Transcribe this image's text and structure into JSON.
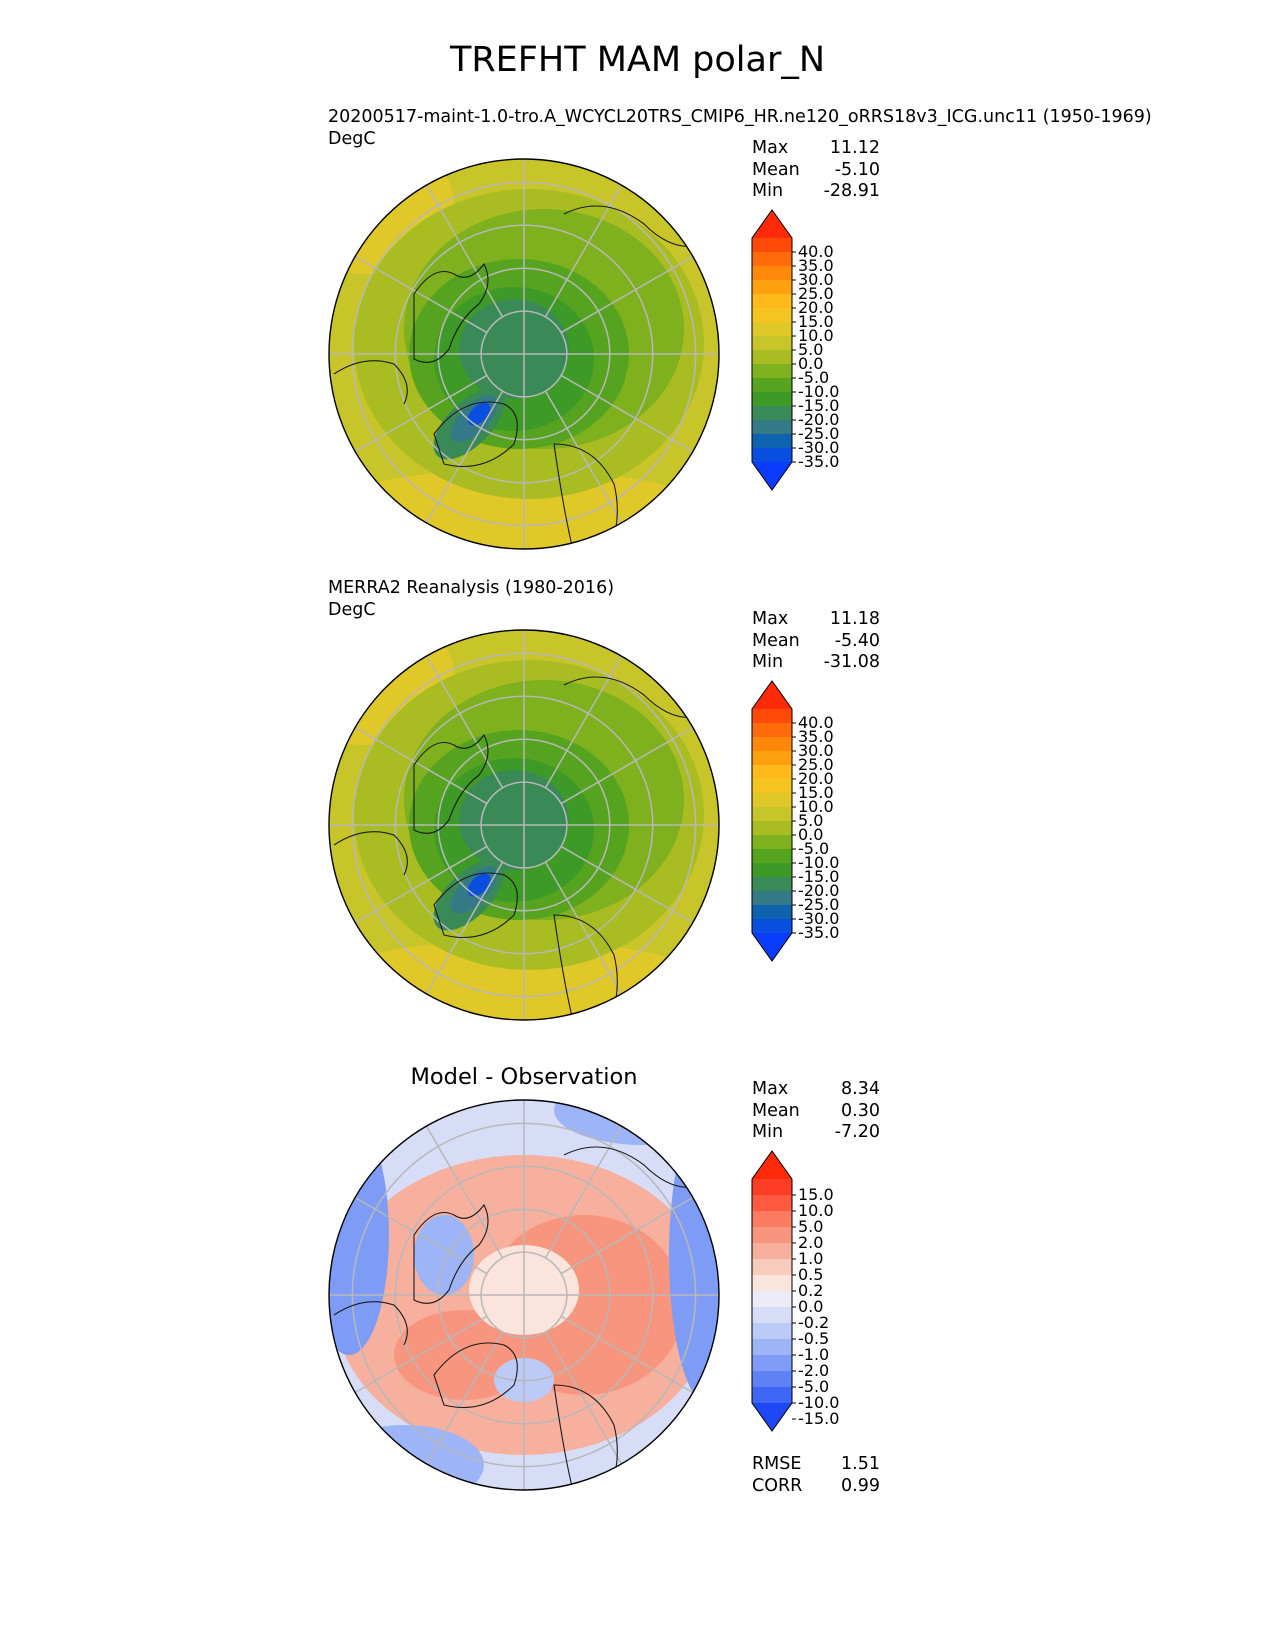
{
  "title": "TREFHT MAM polar_N",
  "panels": [
    {
      "subtitle": "20200517-maint-1.0-tro.A_WCYCL20TRS_CMIP6_HR.ne120_oRRS18v3_ICG.unc11 (1950-1969)",
      "units": "DegC",
      "stats": [
        {
          "label": "Max",
          "value": "11.12"
        },
        {
          "label": "Mean",
          "value": "-5.10"
        },
        {
          "label": "Min",
          "value": "-28.91"
        }
      ]
    },
    {
      "subtitle": "MERRA2 Reanalysis (1980-2016)",
      "units": "DegC",
      "stats": [
        {
          "label": "Max",
          "value": "11.18"
        },
        {
          "label": "Mean",
          "value": "-5.40"
        },
        {
          "label": "Min",
          "value": "-31.08"
        }
      ]
    },
    {
      "title": "Model - Observation",
      "stats": [
        {
          "label": "Max",
          "value": "8.34"
        },
        {
          "label": "Mean",
          "value": "0.30"
        },
        {
          "label": "Min",
          "value": "-7.20"
        }
      ],
      "extra_stats": [
        {
          "label": "RMSE",
          "value": "1.51"
        },
        {
          "label": "CORR",
          "value": "0.99"
        }
      ]
    }
  ],
  "chart_data": [
    {
      "type": "heatmap",
      "projection": "north polar stereographic",
      "variable": "TREFHT",
      "title": "20200517-maint-1.0-tro.A_WCYCL20TRS_CMIP6_HR.ne120_oRRS18v3_ICG.unc11 (1950-1969)",
      "units": "DegC",
      "stats": {
        "max": 11.12,
        "mean": -5.1,
        "min": -28.91
      },
      "colorbar_ticks": [
        "40.0",
        "35.0",
        "30.0",
        "25.0",
        "20.0",
        "15.0",
        "10.0",
        "5.0",
        "0.0",
        "-5.0",
        "-10.0",
        "-15.0",
        "-20.0",
        "-25.0",
        "-30.0",
        "-35.0"
      ],
      "colorbar_colors": [
        "#ff2a0a",
        "#ff4a0a",
        "#ff6a0a",
        "#ff870a",
        "#ffa10f",
        "#ffb91a",
        "#f5c421",
        "#e0c828",
        "#c7c52a",
        "#a9bd22",
        "#7fb01e",
        "#55a31e",
        "#3d9a26",
        "#3a8a58",
        "#347a86",
        "#0f63ae",
        "#0a4ee0",
        "#0a3cff"
      ],
      "grid": true
    },
    {
      "type": "heatmap",
      "projection": "north polar stereographic",
      "variable": "TREFHT",
      "title": "MERRA2 Reanalysis (1980-2016)",
      "units": "DegC",
      "stats": {
        "max": 11.18,
        "mean": -5.4,
        "min": -31.08
      },
      "colorbar_ticks": [
        "40.0",
        "35.0",
        "30.0",
        "25.0",
        "20.0",
        "15.0",
        "10.0",
        "5.0",
        "0.0",
        "-5.0",
        "-10.0",
        "-15.0",
        "-20.0",
        "-25.0",
        "-30.0",
        "-35.0"
      ],
      "colorbar_colors": [
        "#ff2a0a",
        "#ff4a0a",
        "#ff6a0a",
        "#ff870a",
        "#ffa10f",
        "#ffb91a",
        "#f5c421",
        "#e0c828",
        "#c7c52a",
        "#a9bd22",
        "#7fb01e",
        "#55a31e",
        "#3d9a26",
        "#3a8a58",
        "#347a86",
        "#0f63ae",
        "#0a4ee0",
        "#0a3cff"
      ],
      "grid": true
    },
    {
      "type": "heatmap",
      "projection": "north polar stereographic",
      "variable": "TREFHT difference",
      "title": "Model - Observation",
      "stats": {
        "max": 8.34,
        "mean": 0.3,
        "min": -7.2,
        "rmse": 1.51,
        "corr": 0.99
      },
      "colorbar_ticks": [
        "15.0",
        "10.0",
        "5.0",
        "2.0",
        "1.0",
        "0.5",
        "0.2",
        "0.0",
        "-0.2",
        "-0.5",
        "-1.0",
        "-2.0",
        "-5.0",
        "-10.0",
        "-15.0"
      ],
      "colorbar_colors": [
        "#ff2a0a",
        "#ff3c24",
        "#ff5a40",
        "#fa7a62",
        "#f7957f",
        "#f7b09e",
        "#f8cbbd",
        "#fae4dc",
        "#ecebf7",
        "#d7ddf7",
        "#bccaf7",
        "#9db4f7",
        "#7e9cf5",
        "#5e82f5",
        "#3f66f5",
        "#1f48f5"
      ],
      "grid": true
    }
  ]
}
